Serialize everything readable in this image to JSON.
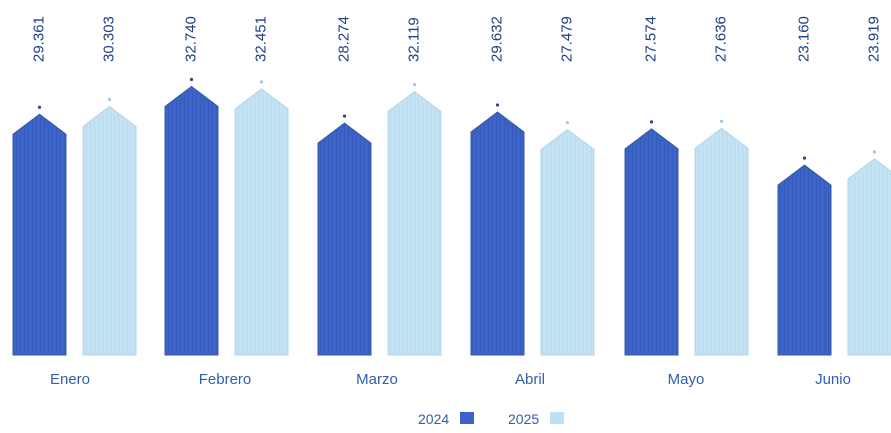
{
  "chart_data": {
    "type": "bar",
    "categories": [
      "Enero",
      "Febrero",
      "Marzo",
      "Abril",
      "Mayo",
      "Junio"
    ],
    "series": [
      {
        "name": "2024",
        "values": [
          29361,
          32740,
          28274,
          29632,
          27574,
          23160
        ]
      },
      {
        "name": "2025",
        "values": [
          30303,
          32451,
          32119,
          27479,
          27636,
          23919
        ]
      }
    ],
    "value_labels": [
      [
        "29.361",
        "32.740",
        "28.274",
        "29.632",
        "27.574",
        "23.160"
      ],
      [
        "30.303",
        "32.451",
        "32.119",
        "27.479",
        "27.636",
        "23.919"
      ]
    ],
    "colors": {
      "2024": "#3c64c8",
      "2025": "#bfe0f2"
    },
    "legend": {
      "position": "bottom"
    },
    "grid": false,
    "title": "",
    "xlabel": "",
    "ylabel": ""
  }
}
